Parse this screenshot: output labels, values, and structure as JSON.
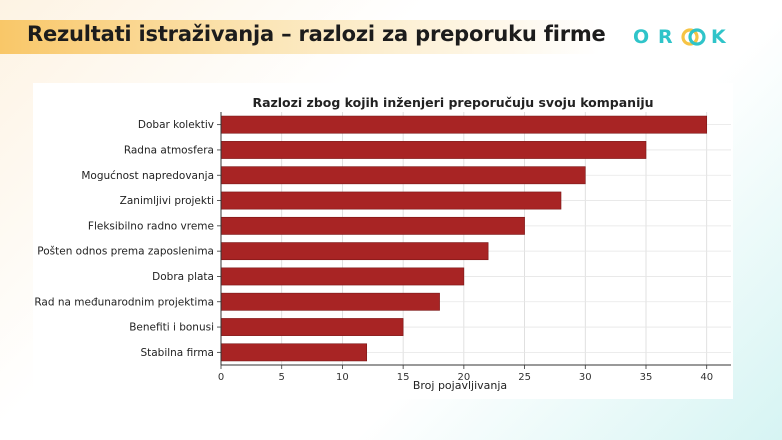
{
  "slide": {
    "title": "Rezultati istraživanja – razlozi za preporuku firme"
  },
  "logo": {
    "letters": [
      "O",
      "R",
      "O",
      "K"
    ],
    "colors": {
      "teal": "#2fc4c9",
      "yellow": "#f6c445"
    }
  },
  "colors": {
    "bar": "#a82424",
    "title_band": "#f9c768"
  },
  "chart_data": {
    "type": "bar",
    "orientation": "horizontal",
    "title": "Razlozi zbog kojih inženjeri preporučuju svoju kompaniju",
    "xlabel": "Broj pojavljivanja",
    "ylabel": "",
    "categories": [
      "Dobar kolektiv",
      "Radna atmosfera",
      "Mogućnost napredovanja",
      "Zanimljivi projekti",
      "Fleksibilno radno vreme",
      "Pošten odnos prema zaposlenima",
      "Dobra plata",
      "Rad na međunarodnim projektima",
      "Benefiti i bonusi",
      "Stabilna firma"
    ],
    "values": [
      40,
      35,
      30,
      28,
      25,
      22,
      20,
      18,
      15,
      12
    ],
    "xlim": [
      0,
      42
    ],
    "xticks": [
      0,
      5,
      10,
      15,
      20,
      25,
      30,
      35,
      40
    ],
    "grid": true,
    "legend": "none"
  }
}
